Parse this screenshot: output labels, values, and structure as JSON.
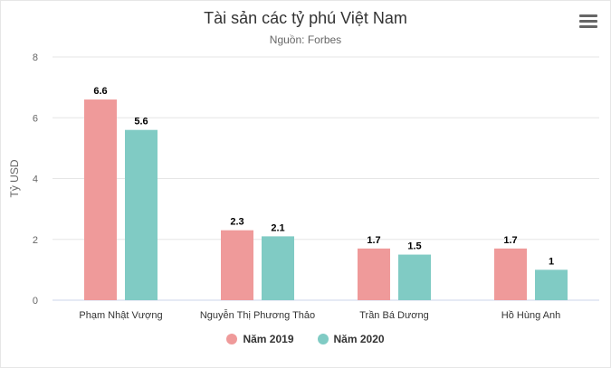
{
  "chart_data": {
    "type": "bar",
    "title": "Tài sản các tỷ phú Việt Nam",
    "subtitle": "Nguồn: Forbes",
    "xlabel": "",
    "ylabel": "Tỷ USD",
    "ylim": [
      0,
      8
    ],
    "yticks": [
      "0",
      "2",
      "4",
      "6",
      "8"
    ],
    "grid": true,
    "legend_position": "bottom",
    "categories": [
      "Phạm Nhật Vượng",
      "Nguyễn Thị Phương Thảo",
      "Trần Bá Dương",
      "Hồ Hùng Anh"
    ],
    "series": [
      {
        "name": "Năm 2019",
        "values": [
          6.6,
          2.3,
          1.7,
          1.7
        ],
        "labels": [
          "6.6",
          "2.3",
          "1.7",
          "1.7"
        ],
        "color": "#ef9a9a"
      },
      {
        "name": "Năm 2020",
        "values": [
          5.6,
          2.1,
          1.5,
          1.0
        ],
        "labels": [
          "5.6",
          "2.1",
          "1.5",
          "1"
        ],
        "color": "#80cbc4"
      }
    ]
  },
  "icons": {
    "menu": "hamburger-menu-icon"
  }
}
